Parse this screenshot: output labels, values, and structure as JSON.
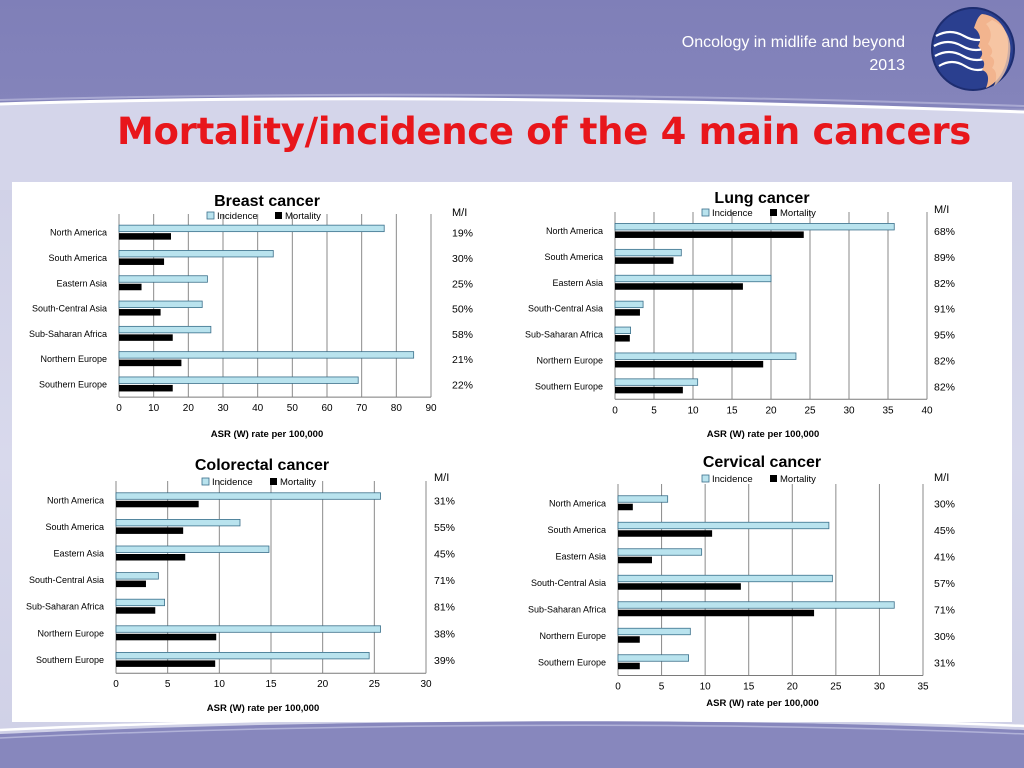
{
  "header": {
    "subtitle_line1": "Oncology in midlife and beyond",
    "subtitle_line2": "2013",
    "title": "Mortality/incidence of the 4 main cancers"
  },
  "colors": {
    "title": "#e8161b",
    "incidence": "#b9e3ee",
    "incidence_stroke": "#3a6f8a",
    "mortality": "#000000",
    "logo_face": "#f2b48e",
    "logo_bg": "#2a3f8f"
  },
  "chart_data": [
    {
      "type": "bar",
      "title": "Breast cancer",
      "categories": [
        "North America",
        "South America",
        "Eastern Asia",
        "South-Central Asia",
        "Sub-Saharan Africa",
        "Northern Europe",
        "Southern Europe"
      ],
      "series": [
        {
          "name": "Incidence",
          "values": [
            76.5,
            44.5,
            25.5,
            24,
            26.5,
            85,
            69
          ]
        },
        {
          "name": "Mortality",
          "values": [
            15,
            13,
            6.5,
            12,
            15.5,
            18,
            15.5
          ]
        }
      ],
      "ratio_header": "M/I",
      "ratios": [
        "19%",
        "30%",
        "25%",
        "50%",
        "58%",
        "21%",
        "22%"
      ],
      "xlabel": "ASR (W) rate per 100,000",
      "xticks": [
        0,
        10,
        20,
        30,
        40,
        50,
        60,
        70,
        80,
        90
      ],
      "xlim": [
        0,
        90
      ],
      "legend": [
        "Incidence",
        "Mortality"
      ]
    },
    {
      "type": "bar",
      "title": "Lung cancer",
      "categories": [
        "North America",
        "South America",
        "Eastern Asia",
        "South-Central Asia",
        "Sub-Saharan Africa",
        "Northern Europe",
        "Southern Europe"
      ],
      "series": [
        {
          "name": "Incidence",
          "values": [
            35.8,
            8.5,
            20,
            3.6,
            2,
            23.2,
            10.6
          ]
        },
        {
          "name": "Mortality",
          "values": [
            24.2,
            7.5,
            16.4,
            3.2,
            1.9,
            19,
            8.7
          ]
        }
      ],
      "ratio_header": "M/I",
      "ratios": [
        "68%",
        "89%",
        "82%",
        "91%",
        "95%",
        "82%",
        "82%"
      ],
      "xlabel": "ASR (W) rate per 100,000",
      "xticks": [
        0,
        5,
        10,
        15,
        20,
        25,
        30,
        35,
        40
      ],
      "xlim": [
        0,
        40
      ],
      "legend": [
        "Incidence",
        "Mortality"
      ]
    },
    {
      "type": "bar",
      "title": "Colorectal cancer",
      "categories": [
        "North America",
        "South America",
        "Eastern Asia",
        "South-Central Asia",
        "Sub-Saharan Africa",
        "Northern Europe",
        "Southern Europe"
      ],
      "series": [
        {
          "name": "Incidence",
          "values": [
            25.6,
            12,
            14.8,
            4.1,
            4.7,
            25.6,
            24.5
          ]
        },
        {
          "name": "Mortality",
          "values": [
            8,
            6.5,
            6.7,
            2.9,
            3.8,
            9.7,
            9.6
          ]
        }
      ],
      "ratio_header": "M/I",
      "ratios": [
        "31%",
        "55%",
        "45%",
        "71%",
        "81%",
        "38%",
        "39%"
      ],
      "xlabel": "ASR (W) rate per 100,000",
      "xticks": [
        0,
        5,
        10,
        15,
        20,
        25,
        30
      ],
      "xlim": [
        0,
        30
      ],
      "legend": [
        "Incidence",
        "Mortality"
      ]
    },
    {
      "type": "bar",
      "title": "Cervical cancer",
      "categories": [
        "North America",
        "South America",
        "Eastern Asia",
        "South-Central Asia",
        "Sub-Saharan Africa",
        "Northern Europe",
        "Southern Europe"
      ],
      "series": [
        {
          "name": "Incidence",
          "values": [
            5.7,
            24.2,
            9.6,
            24.6,
            31.7,
            8.3,
            8.1
          ]
        },
        {
          "name": "Mortality",
          "values": [
            1.7,
            10.8,
            3.9,
            14.1,
            22.5,
            2.5,
            2.5
          ]
        }
      ],
      "ratio_header": "M/I",
      "ratios": [
        "30%",
        "45%",
        "41%",
        "57%",
        "71%",
        "30%",
        "31%"
      ],
      "xlabel": "ASR (W) rate per 100,000",
      "xticks": [
        0,
        5,
        10,
        15,
        20,
        25,
        30,
        35
      ],
      "xlim": [
        0,
        35
      ],
      "legend": [
        "Incidence",
        "Mortality"
      ]
    }
  ]
}
